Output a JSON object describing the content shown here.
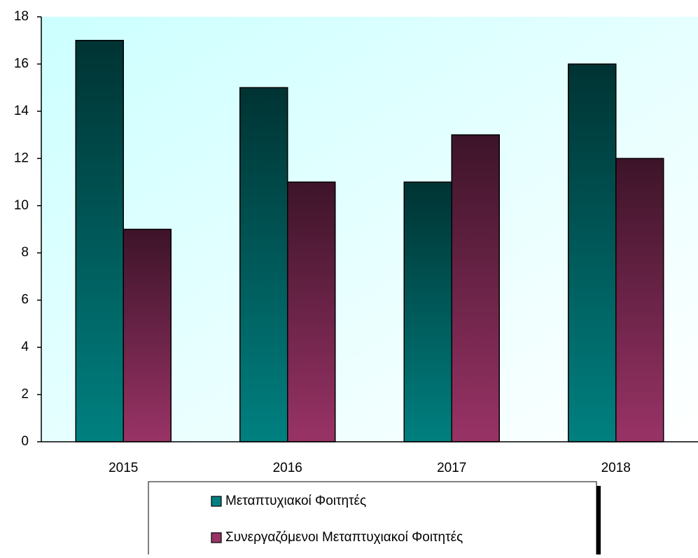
{
  "chart_data": {
    "type": "bar",
    "categories": [
      "2015",
      "2016",
      "2017",
      "2018"
    ],
    "series": [
      {
        "name": "Μεταπτυχιακοί Φοιτητές",
        "color": "#008080",
        "values": [
          17,
          15,
          11,
          16
        ]
      },
      {
        "name": "Συνεργαζόμενοι Μεταπτυχιακοί Φοιτητές",
        "color": "#993366",
        "values": [
          9,
          11,
          13,
          12
        ]
      }
    ],
    "ylim": [
      0,
      18
    ],
    "yticks": [
      0,
      2,
      4,
      6,
      8,
      10,
      12,
      14,
      16,
      18
    ],
    "legend": "bottom",
    "grid": false
  }
}
